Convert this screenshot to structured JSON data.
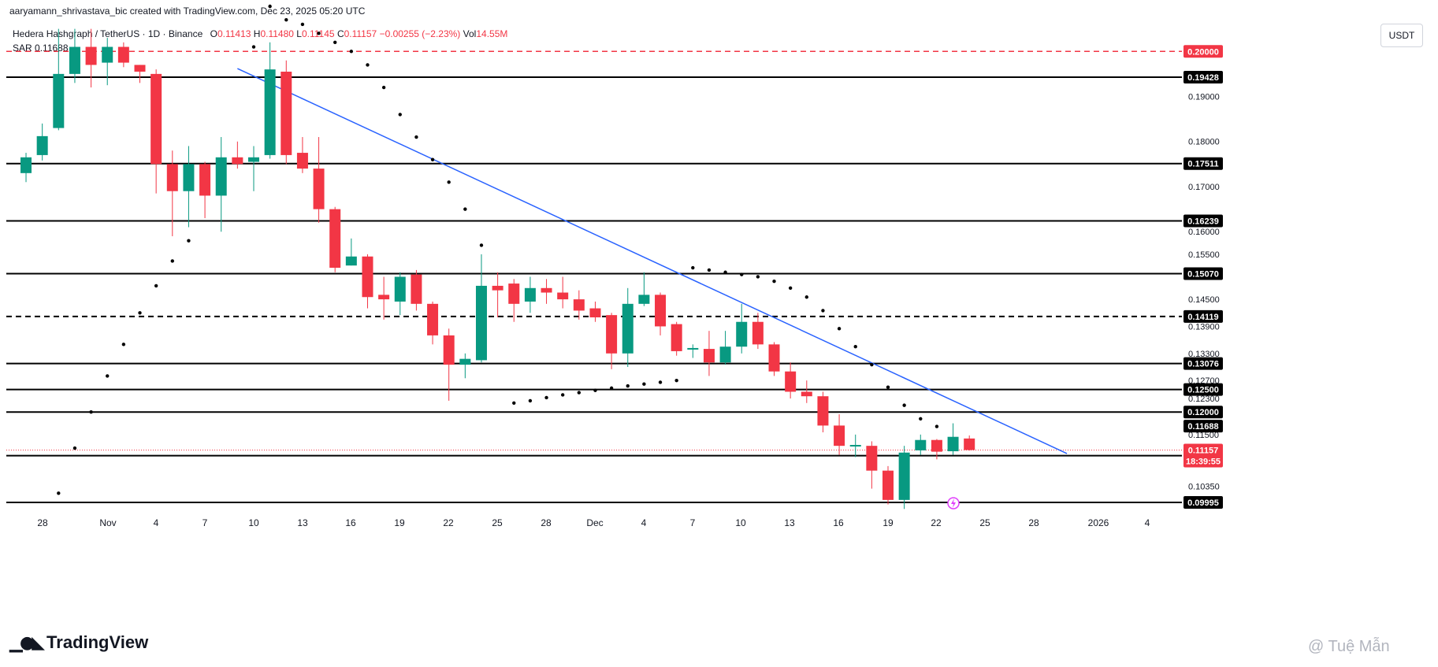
{
  "header": {
    "credit": "aaryamann_shrivastava_bic created with TradingView.com, Dec 23, 2025 05:20 UTC"
  },
  "legend": {
    "symbol": "Hedera Hashgraph / TetherUS · 1D · Binance",
    "open_label": "O",
    "open": "0.11413",
    "high_label": "H",
    "high": "0.11480",
    "low_label": "L",
    "low": "0.11145",
    "close_label": "C",
    "close": "0.11157",
    "change": "−0.00255 (−2.23%)",
    "vol_label": "Vol",
    "vol": "14.55M",
    "sar_label": "SAR",
    "sar": "0.11688"
  },
  "currency": "USDT",
  "branding": {
    "logo_text": "TradingView",
    "watermark": "@ Tuệ Mẫn"
  },
  "colors": {
    "up": "#089981",
    "down": "#f23645",
    "trendline": "#2962ff",
    "level": "#000000",
    "sar": "#000000"
  },
  "chart_data": {
    "type": "candlestick",
    "price_axis_ticks": [
      "0.19000",
      "0.18000",
      "0.17000",
      "0.16000",
      "0.15500",
      "0.14500",
      "0.13900",
      "0.13300",
      "0.12700",
      "0.12300",
      "0.11500",
      "0.10350"
    ],
    "time_axis_ticks": [
      "28",
      "Nov",
      "4",
      "7",
      "10",
      "13",
      "16",
      "19",
      "22",
      "25",
      "28",
      "Dec",
      "4",
      "7",
      "10",
      "13",
      "16",
      "19",
      "22",
      "25",
      "28",
      "2026",
      "4"
    ],
    "horizontal_levels": [
      {
        "value": 0.2,
        "label": "0.20000",
        "style": "dashed",
        "color": "#f23645"
      },
      {
        "value": 0.19428,
        "label": "0.19428",
        "style": "solid"
      },
      {
        "value": 0.17511,
        "label": "0.17511",
        "style": "solid"
      },
      {
        "value": 0.16239,
        "label": "0.16239",
        "style": "solid"
      },
      {
        "value": 0.1507,
        "label": "0.15070",
        "style": "solid"
      },
      {
        "value": 0.14119,
        "label": "0.14119",
        "style": "dashed"
      },
      {
        "value": 0.13076,
        "label": "0.13076",
        "style": "solid"
      },
      {
        "value": 0.125,
        "label": "0.12500",
        "style": "solid"
      },
      {
        "value": 0.12,
        "label": "0.12000",
        "style": "solid"
      },
      {
        "value": 0.11033,
        "label": "0.11033",
        "style": "solid"
      },
      {
        "value": 0.09995,
        "label": "0.09995",
        "style": "solid"
      }
    ],
    "indicator_badges": [
      {
        "label": "0.11688",
        "value": 0.11688,
        "kind": "sar"
      },
      {
        "label": "0.11157",
        "value": 0.11157,
        "kind": "last_price"
      }
    ],
    "countdown": "18:39:55",
    "trendline": [
      {
        "date": "2025-11-09",
        "price": 0.1962
      },
      {
        "date": "2025-12-30",
        "price": 0.1108
      }
    ],
    "candles": [
      {
        "date": "2025-10-27",
        "o": 0.173,
        "h": 0.1775,
        "l": 0.171,
        "c": 0.1765
      },
      {
        "date": "2025-10-28",
        "o": 0.177,
        "h": 0.184,
        "l": 0.1758,
        "c": 0.1812
      },
      {
        "date": "2025-10-29",
        "o": 0.183,
        "h": 0.205,
        "l": 0.1825,
        "c": 0.195
      },
      {
        "date": "2025-10-30",
        "o": 0.195,
        "h": 0.205,
        "l": 0.193,
        "c": 0.201
      },
      {
        "date": "2025-10-31",
        "o": 0.201,
        "h": 0.205,
        "l": 0.192,
        "c": 0.197
      },
      {
        "date": "2025-11-01",
        "o": 0.1975,
        "h": 0.203,
        "l": 0.1925,
        "c": 0.201
      },
      {
        "date": "2025-11-02",
        "o": 0.201,
        "h": 0.202,
        "l": 0.1965,
        "c": 0.1975
      },
      {
        "date": "2025-11-03",
        "o": 0.197,
        "h": 0.197,
        "l": 0.193,
        "c": 0.1955
      },
      {
        "date": "2025-11-04",
        "o": 0.195,
        "h": 0.196,
        "l": 0.1685,
        "c": 0.175
      },
      {
        "date": "2025-11-05",
        "o": 0.175,
        "h": 0.178,
        "l": 0.159,
        "c": 0.169
      },
      {
        "date": "2025-11-06",
        "o": 0.169,
        "h": 0.179,
        "l": 0.161,
        "c": 0.175
      },
      {
        "date": "2025-11-07",
        "o": 0.175,
        "h": 0.1755,
        "l": 0.163,
        "c": 0.168
      },
      {
        "date": "2025-11-08",
        "o": 0.168,
        "h": 0.181,
        "l": 0.16,
        "c": 0.1765
      },
      {
        "date": "2025-11-09",
        "o": 0.1765,
        "h": 0.18,
        "l": 0.174,
        "c": 0.175
      },
      {
        "date": "2025-11-10",
        "o": 0.1755,
        "h": 0.179,
        "l": 0.169,
        "c": 0.1765
      },
      {
        "date": "2025-11-11",
        "o": 0.177,
        "h": 0.202,
        "l": 0.1762,
        "c": 0.196
      },
      {
        "date": "2025-11-12",
        "o": 0.1955,
        "h": 0.198,
        "l": 0.175,
        "c": 0.177
      },
      {
        "date": "2025-11-13",
        "o": 0.1775,
        "h": 0.181,
        "l": 0.173,
        "c": 0.174
      },
      {
        "date": "2025-11-14",
        "o": 0.174,
        "h": 0.181,
        "l": 0.162,
        "c": 0.165
      },
      {
        "date": "2025-11-15",
        "o": 0.165,
        "h": 0.1655,
        "l": 0.151,
        "c": 0.152
      },
      {
        "date": "2025-11-16",
        "o": 0.1525,
        "h": 0.1585,
        "l": 0.1525,
        "c": 0.1545
      },
      {
        "date": "2025-11-17",
        "o": 0.1545,
        "h": 0.155,
        "l": 0.143,
        "c": 0.1455
      },
      {
        "date": "2025-11-18",
        "o": 0.146,
        "h": 0.15,
        "l": 0.1405,
        "c": 0.145
      },
      {
        "date": "2025-11-19",
        "o": 0.1445,
        "h": 0.151,
        "l": 0.1415,
        "c": 0.15
      },
      {
        "date": "2025-11-20",
        "o": 0.1505,
        "h": 0.1515,
        "l": 0.1425,
        "c": 0.144
      },
      {
        "date": "2025-11-21",
        "o": 0.144,
        "h": 0.1445,
        "l": 0.135,
        "c": 0.137
      },
      {
        "date": "2025-11-22",
        "o": 0.137,
        "h": 0.1385,
        "l": 0.1225,
        "c": 0.1305
      },
      {
        "date": "2025-11-23",
        "o": 0.1305,
        "h": 0.133,
        "l": 0.1275,
        "c": 0.1318
      },
      {
        "date": "2025-11-24",
        "o": 0.1315,
        "h": 0.155,
        "l": 0.131,
        "c": 0.148
      },
      {
        "date": "2025-11-25",
        "o": 0.148,
        "h": 0.151,
        "l": 0.141,
        "c": 0.147
      },
      {
        "date": "2025-11-26",
        "o": 0.1485,
        "h": 0.1495,
        "l": 0.14,
        "c": 0.144
      },
      {
        "date": "2025-11-27",
        "o": 0.1445,
        "h": 0.15,
        "l": 0.142,
        "c": 0.1475
      },
      {
        "date": "2025-11-28",
        "o": 0.1475,
        "h": 0.1495,
        "l": 0.144,
        "c": 0.1465
      },
      {
        "date": "2025-11-29",
        "o": 0.1465,
        "h": 0.15,
        "l": 0.143,
        "c": 0.145
      },
      {
        "date": "2025-11-30",
        "o": 0.145,
        "h": 0.147,
        "l": 0.1405,
        "c": 0.1425
      },
      {
        "date": "2025-12-01",
        "o": 0.143,
        "h": 0.1445,
        "l": 0.14,
        "c": 0.141
      },
      {
        "date": "2025-12-02",
        "o": 0.1415,
        "h": 0.142,
        "l": 0.1295,
        "c": 0.133
      },
      {
        "date": "2025-12-03",
        "o": 0.133,
        "h": 0.1475,
        "l": 0.13,
        "c": 0.144
      },
      {
        "date": "2025-12-04",
        "o": 0.144,
        "h": 0.151,
        "l": 0.1435,
        "c": 0.146
      },
      {
        "date": "2025-12-05",
        "o": 0.146,
        "h": 0.1465,
        "l": 0.137,
        "c": 0.139
      },
      {
        "date": "2025-12-06",
        "o": 0.1395,
        "h": 0.14,
        "l": 0.1325,
        "c": 0.1335
      },
      {
        "date": "2025-12-07",
        "o": 0.134,
        "h": 0.135,
        "l": 0.132,
        "c": 0.1342
      },
      {
        "date": "2025-12-08",
        "o": 0.134,
        "h": 0.138,
        "l": 0.128,
        "c": 0.131
      },
      {
        "date": "2025-12-09",
        "o": 0.131,
        "h": 0.138,
        "l": 0.1305,
        "c": 0.1345
      },
      {
        "date": "2025-12-10",
        "o": 0.1345,
        "h": 0.144,
        "l": 0.133,
        "c": 0.14
      },
      {
        "date": "2025-12-11",
        "o": 0.14,
        "h": 0.142,
        "l": 0.134,
        "c": 0.135
      },
      {
        "date": "2025-12-12",
        "o": 0.135,
        "h": 0.1355,
        "l": 0.128,
        "c": 0.129
      },
      {
        "date": "2025-12-13",
        "o": 0.129,
        "h": 0.131,
        "l": 0.123,
        "c": 0.1245
      },
      {
        "date": "2025-12-14",
        "o": 0.1245,
        "h": 0.127,
        "l": 0.122,
        "c": 0.1235
      },
      {
        "date": "2025-12-15",
        "o": 0.1235,
        "h": 0.1245,
        "l": 0.1155,
        "c": 0.117
      },
      {
        "date": "2025-12-16",
        "o": 0.117,
        "h": 0.1195,
        "l": 0.1105,
        "c": 0.1125
      },
      {
        "date": "2025-12-17",
        "o": 0.1125,
        "h": 0.115,
        "l": 0.11,
        "c": 0.1127
      },
      {
        "date": "2025-12-18",
        "o": 0.1125,
        "h": 0.1135,
        "l": 0.103,
        "c": 0.107
      },
      {
        "date": "2025-12-19",
        "o": 0.107,
        "h": 0.108,
        "l": 0.0995,
        "c": 0.1005
      },
      {
        "date": "2025-12-20",
        "o": 0.1005,
        "h": 0.1125,
        "l": 0.0985,
        "c": 0.111
      },
      {
        "date": "2025-12-21",
        "o": 0.1115,
        "h": 0.115,
        "l": 0.1105,
        "c": 0.1138
      },
      {
        "date": "2025-12-22",
        "o": 0.1138,
        "h": 0.114,
        "l": 0.1095,
        "c": 0.1112
      },
      {
        "date": "2025-12-23",
        "o": 0.1113,
        "h": 0.1175,
        "l": 0.1105,
        "c": 0.1145
      },
      {
        "date": "2025-12-23b",
        "o": 0.11413,
        "h": 0.1148,
        "l": 0.11145,
        "c": 0.11157
      }
    ],
    "sar_points": [
      {
        "date": "2025-10-29",
        "value": 0.102
      },
      {
        "date": "2025-10-30",
        "value": 0.112
      },
      {
        "date": "2025-10-31",
        "value": 0.12
      },
      {
        "date": "2025-11-01",
        "value": 0.128
      },
      {
        "date": "2025-11-02",
        "value": 0.135
      },
      {
        "date": "2025-11-03",
        "value": 0.142
      },
      {
        "date": "2025-11-04",
        "value": 0.148
      },
      {
        "date": "2025-11-05",
        "value": 0.1535
      },
      {
        "date": "2025-11-06",
        "value": 0.158
      },
      {
        "date": "2025-11-10",
        "value": 0.201
      },
      {
        "date": "2025-11-11",
        "value": 0.21
      },
      {
        "date": "2025-11-12",
        "value": 0.207
      },
      {
        "date": "2025-11-13",
        "value": 0.206
      },
      {
        "date": "2025-11-14",
        "value": 0.204
      },
      {
        "date": "2025-11-15",
        "value": 0.202
      },
      {
        "date": "2025-11-16",
        "value": 0.2
      },
      {
        "date": "2025-11-17",
        "value": 0.197
      },
      {
        "date": "2025-11-18",
        "value": 0.192
      },
      {
        "date": "2025-11-19",
        "value": 0.186
      },
      {
        "date": "2025-11-20",
        "value": 0.181
      },
      {
        "date": "2025-11-21",
        "value": 0.176
      },
      {
        "date": "2025-11-22",
        "value": 0.171
      },
      {
        "date": "2025-11-23",
        "value": 0.165
      },
      {
        "date": "2025-11-24",
        "value": 0.157
      },
      {
        "date": "2025-11-26",
        "value": 0.122
      },
      {
        "date": "2025-11-27",
        "value": 0.1225
      },
      {
        "date": "2025-11-28",
        "value": 0.1232
      },
      {
        "date": "2025-11-29",
        "value": 0.1238
      },
      {
        "date": "2025-11-30",
        "value": 0.1243
      },
      {
        "date": "2025-12-01",
        "value": 0.1248
      },
      {
        "date": "2025-12-02",
        "value": 0.1253
      },
      {
        "date": "2025-12-03",
        "value": 0.1258
      },
      {
        "date": "2025-12-04",
        "value": 0.1262
      },
      {
        "date": "2025-12-05",
        "value": 0.1266
      },
      {
        "date": "2025-12-06",
        "value": 0.127
      },
      {
        "date": "2025-12-07",
        "value": 0.152
      },
      {
        "date": "2025-12-08",
        "value": 0.1515
      },
      {
        "date": "2025-12-09",
        "value": 0.151
      },
      {
        "date": "2025-12-10",
        "value": 0.1505
      },
      {
        "date": "2025-12-11",
        "value": 0.15
      },
      {
        "date": "2025-12-12",
        "value": 0.149
      },
      {
        "date": "2025-12-13",
        "value": 0.1475
      },
      {
        "date": "2025-12-14",
        "value": 0.1455
      },
      {
        "date": "2025-12-15",
        "value": 0.1425
      },
      {
        "date": "2025-12-16",
        "value": 0.1385
      },
      {
        "date": "2025-12-17",
        "value": 0.1345
      },
      {
        "date": "2025-12-18",
        "value": 0.1305
      },
      {
        "date": "2025-12-19",
        "value": 0.1255
      },
      {
        "date": "2025-12-20",
        "value": 0.1215
      },
      {
        "date": "2025-12-21",
        "value": 0.1185
      },
      {
        "date": "2025-12-22",
        "value": 0.1168
      }
    ]
  }
}
